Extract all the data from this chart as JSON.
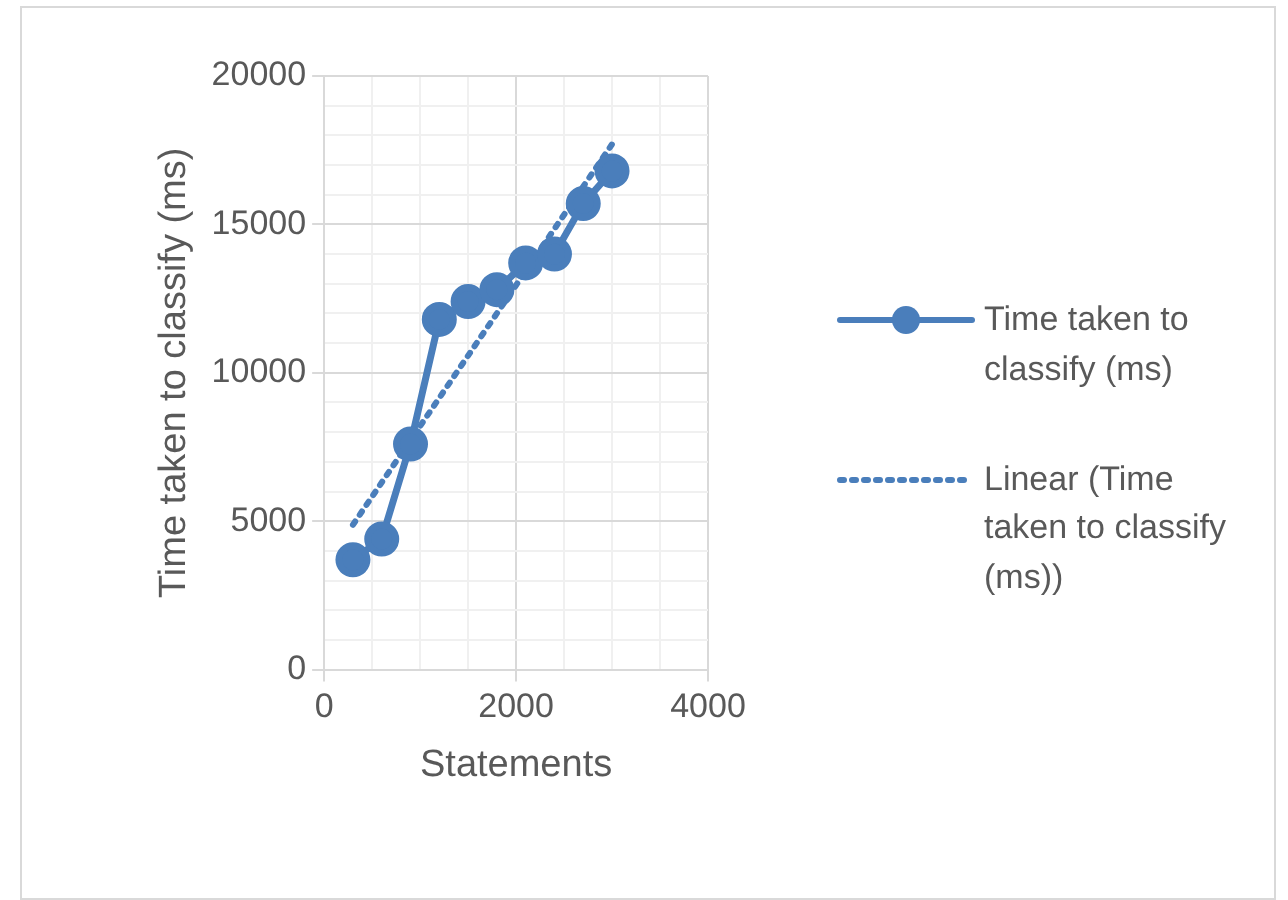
{
  "chart_data": {
    "type": "line",
    "xlabel": "Statements",
    "ylabel": "Time taken to classify (ms)",
    "xlim": [
      0,
      4000
    ],
    "xticks": [
      0,
      {
        "value": 500,
        "label": null
      },
      {
        "value": 1000,
        "label": null
      },
      {
        "value": 1500,
        "label": null
      },
      2000,
      {
        "value": 2500,
        "label": null
      },
      {
        "value": 3000,
        "label": null
      },
      {
        "value": 3500,
        "label": null
      },
      4000
    ],
    "ylim": [
      0,
      20000
    ],
    "yticks": [
      0,
      {
        "value": 1000,
        "label": null
      },
      {
        "value": 2000,
        "label": null
      },
      {
        "value": 3000,
        "label": null
      },
      {
        "value": 4000,
        "label": null
      },
      5000,
      {
        "value": 6000,
        "label": null
      },
      {
        "value": 7000,
        "label": null
      },
      {
        "value": 8000,
        "label": null
      },
      {
        "value": 9000,
        "label": null
      },
      10000,
      {
        "value": 11000,
        "label": null
      },
      {
        "value": 12000,
        "label": null
      },
      {
        "value": 13000,
        "label": null
      },
      {
        "value": 14000,
        "label": null
      },
      15000,
      {
        "value": 16000,
        "label": null
      },
      {
        "value": 17000,
        "label": null
      },
      {
        "value": 18000,
        "label": null
      },
      {
        "value": 19000,
        "label": null
      },
      20000
    ],
    "grid": true,
    "legend": "right",
    "series": [
      {
        "name": "Time taken to classify (ms)",
        "color": "#4a7ebb",
        "marker": "circle",
        "line_style": "solid",
        "x": [
          300,
          600,
          900,
          1200,
          1500,
          1800,
          2100,
          2400,
          2700,
          3000
        ],
        "values": [
          3700,
          4400,
          7600,
          11800,
          12400,
          12800,
          13700,
          14000,
          15700,
          16800
        ]
      },
      {
        "name": "Linear (Time taken to classify (ms))",
        "color": "#4a7ebb",
        "marker": "none",
        "line_style": "dotted",
        "x": [
          300,
          3000
        ],
        "values": [
          4880,
          17700
        ]
      }
    ]
  }
}
